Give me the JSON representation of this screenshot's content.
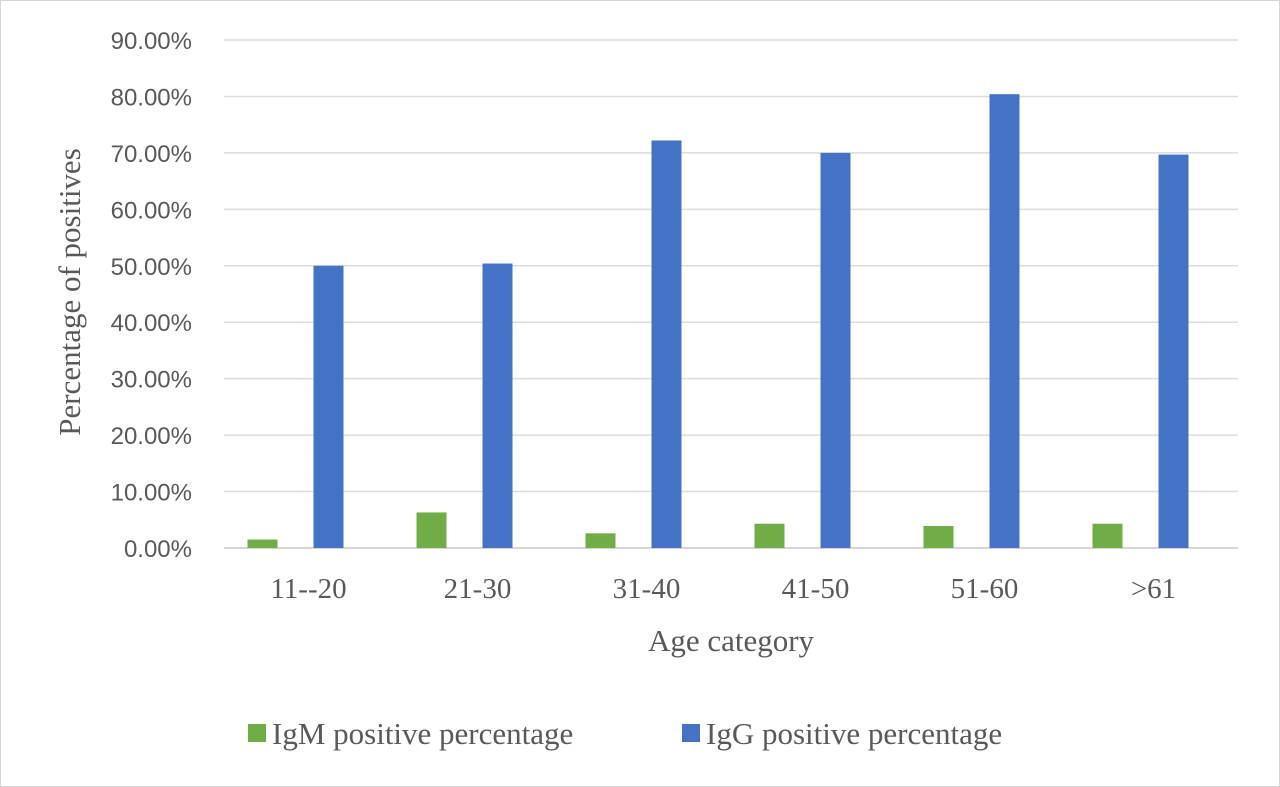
{
  "chart_data": {
    "type": "bar",
    "categories": [
      "11--20",
      "21-30",
      "31-40",
      "41-50",
      "51-60",
      ">61"
    ],
    "series": [
      {
        "name": "IgM positive percentage",
        "color": "#70ad47",
        "values": [
          1.5,
          6.3,
          2.6,
          4.3,
          3.9,
          4.3
        ]
      },
      {
        "name": "IgG positive percentage",
        "color": "#4472c4",
        "values": [
          50.0,
          50.4,
          72.2,
          70.0,
          80.4,
          69.7
        ]
      }
    ],
    "title": "",
    "xlabel": "Age category",
    "ylabel": "Percentage of positives",
    "ylim": [
      0,
      90
    ],
    "yticks": [
      "0.00%",
      "10.00%",
      "20.00%",
      "30.00%",
      "40.00%",
      "50.00%",
      "60.00%",
      "70.00%",
      "80.00%",
      "90.00%"
    ],
    "grid": true,
    "legend_position": "bottom"
  }
}
